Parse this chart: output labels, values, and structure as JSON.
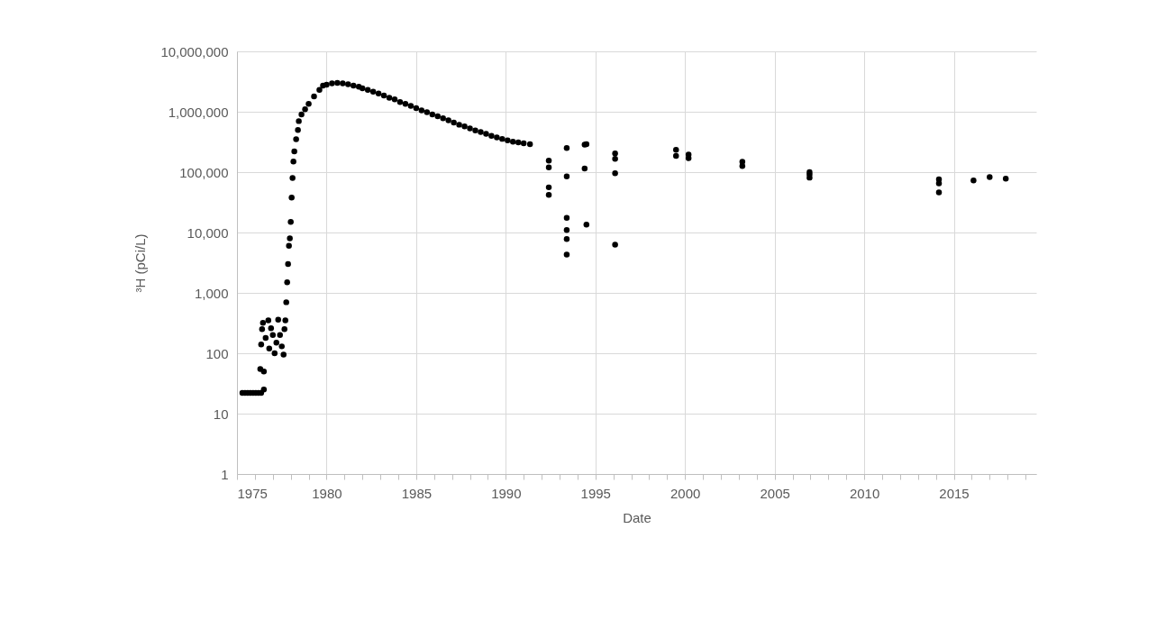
{
  "chart_data": {
    "type": "scatter",
    "xlabel": "Date",
    "ylabel": "³H (pCi/L)",
    "log": "y",
    "grid": true,
    "marker": "circle",
    "xlim": [
      1975,
      2019.6
    ],
    "xticks": [
      1975,
      {
        "value": 1976,
        "label": null
      },
      {
        "value": 1977,
        "label": null
      },
      {
        "value": 1978,
        "label": null
      },
      {
        "value": 1979,
        "label": null
      },
      1980,
      {
        "value": 1981,
        "label": null
      },
      {
        "value": 1982,
        "label": null
      },
      {
        "value": 1983,
        "label": null
      },
      {
        "value": 1984,
        "label": null
      },
      1985,
      {
        "value": 1986,
        "label": null
      },
      {
        "value": 1987,
        "label": null
      },
      {
        "value": 1988,
        "label": null
      },
      {
        "value": 1989,
        "label": null
      },
      1990,
      {
        "value": 1991,
        "label": null
      },
      {
        "value": 1992,
        "label": null
      },
      {
        "value": 1993,
        "label": null
      },
      {
        "value": 1994,
        "label": null
      },
      1995,
      {
        "value": 1996,
        "label": null
      },
      {
        "value": 1997,
        "label": null
      },
      {
        "value": 1998,
        "label": null
      },
      {
        "value": 1999,
        "label": null
      },
      2000,
      {
        "value": 2001,
        "label": null
      },
      {
        "value": 2002,
        "label": null
      },
      {
        "value": 2003,
        "label": null
      },
      {
        "value": 2004,
        "label": null
      },
      2005,
      {
        "value": 2006,
        "label": null
      },
      {
        "value": 2007,
        "label": null
      },
      {
        "value": 2008,
        "label": null
      },
      {
        "value": 2009,
        "label": null
      },
      2010,
      {
        "value": 2011,
        "label": null
      },
      {
        "value": 2012,
        "label": null
      },
      {
        "value": 2013,
        "label": null
      },
      {
        "value": 2014,
        "label": null
      },
      2015,
      {
        "value": 2016,
        "label": null
      },
      {
        "value": 2017,
        "label": null
      },
      {
        "value": 2018,
        "label": null
      },
      {
        "value": 2019,
        "label": null
      }
    ],
    "ylim": [
      1,
      10000000
    ],
    "yticks": [
      {
        "value": 1,
        "label": "1"
      },
      {
        "value": 10,
        "label": "10"
      },
      {
        "value": 100,
        "label": "100"
      },
      {
        "value": 1000,
        "label": "1,000"
      },
      {
        "value": 10000,
        "label": "10,000"
      },
      {
        "value": 100000,
        "label": "100,000"
      },
      {
        "value": 1000000,
        "label": "1,000,000"
      },
      {
        "value": 10000000,
        "label": "10,000,000"
      }
    ],
    "series": [
      {
        "color": "#000000",
        "x": [
          1975.3,
          1975.45,
          1975.6,
          1975.75,
          1975.9,
          1976.05,
          1976.2,
          1976.35,
          1976.5,
          1976.3,
          1976.5,
          1976.35,
          1976.4,
          1976.45,
          1976.6,
          1976.75,
          1976.8,
          1976.9,
          1977.0,
          1977.1,
          1977.2,
          1977.3,
          1977.4,
          1977.5,
          1977.6,
          1977.65,
          1977.7,
          1977.75,
          1977.8,
          1977.85,
          1977.9,
          1977.95,
          1978.0,
          1978.05,
          1978.1,
          1978.15,
          1978.2,
          1978.3,
          1978.4,
          1978.45,
          1978.6,
          1978.8,
          1979.0,
          1979.3,
          1979.6,
          1979.8,
          1980.0,
          1980.3,
          1980.6,
          1980.9,
          1981.2,
          1981.5,
          1981.8,
          1982.0,
          1982.3,
          1982.6,
          1982.9,
          1983.2,
          1983.5,
          1983.8,
          1984.1,
          1984.4,
          1984.7,
          1985.0,
          1985.3,
          1985.6,
          1985.9,
          1986.2,
          1986.5,
          1986.8,
          1987.1,
          1987.4,
          1987.7,
          1988.0,
          1988.3,
          1988.6,
          1988.9,
          1989.2,
          1989.5,
          1989.8,
          1990.1,
          1990.4,
          1990.7,
          1991.0,
          1991.35,
          1992.4,
          1992.4,
          1992.4,
          1992.4,
          1993.4,
          1993.4,
          1993.4,
          1993.4,
          1993.4,
          1993.4,
          1994.4,
          1994.5,
          1994.4,
          1994.5,
          1996.1,
          1996.1,
          1996.1,
          1996.1,
          1999.5,
          1999.5,
          2000.2,
          2000.2,
          2003.2,
          2003.2,
          2006.95,
          2006.95,
          2006.95,
          2014.17,
          2014.17,
          2014.17,
          2016.1,
          2017.0,
          2017.9
        ],
        "values": [
          22,
          22,
          22,
          22,
          22,
          22,
          22,
          22,
          25,
          55,
          50,
          140,
          250,
          320,
          180,
          350,
          120,
          260,
          200,
          100,
          150,
          360,
          200,
          130,
          95,
          250,
          350,
          700,
          1500,
          3000,
          6000,
          8000,
          15000,
          38000,
          80000,
          150000,
          220000,
          350000,
          500000,
          700000,
          900000,
          1100000,
          1350000,
          1800000,
          2300000,
          2700000,
          2800000,
          2950000,
          3000000,
          2950000,
          2850000,
          2700000,
          2600000,
          2450000,
          2300000,
          2150000,
          2000000,
          1850000,
          1700000,
          1600000,
          1450000,
          1350000,
          1250000,
          1150000,
          1050000,
          980000,
          900000,
          840000,
          780000,
          720000,
          660000,
          610000,
          570000,
          530000,
          490000,
          460000,
          430000,
          400000,
          375000,
          355000,
          335000,
          320000,
          310000,
          300000,
          290000,
          155000,
          120000,
          56000,
          42000,
          250000,
          85000,
          17500,
          11000,
          7800,
          4300,
          285000,
          290000,
          115000,
          13500,
          204000,
          166000,
          96000,
          6300,
          235000,
          186000,
          195000,
          170000,
          148000,
          126000,
          100000,
          91000,
          81000,
          76000,
          65000,
          46000,
          73000,
          83000,
          78000
        ]
      }
    ]
  }
}
